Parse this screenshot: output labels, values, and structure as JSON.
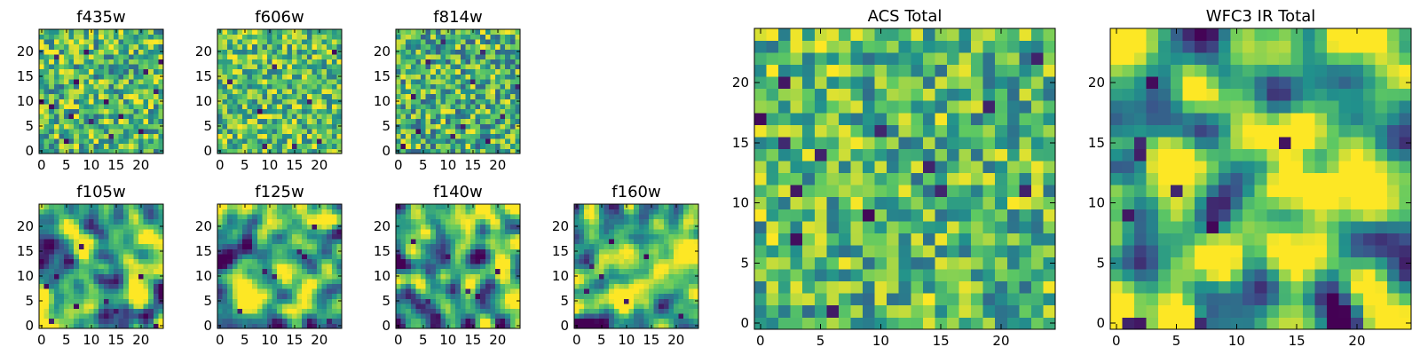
{
  "figure": {
    "colormap": "viridis",
    "colorscale": [
      "#440154",
      "#3b528b",
      "#21918c",
      "#5ec962",
      "#fde725"
    ],
    "background": "#ffffff"
  },
  "chart_data": [
    {
      "type": "heatmap",
      "title": "f435w",
      "grid_size": 25,
      "xlim": [
        0,
        24
      ],
      "ylim": [
        0,
        24
      ],
      "xticks": [
        0,
        5,
        10,
        15,
        20
      ],
      "yticks": [
        0,
        5,
        10,
        15,
        20
      ],
      "origin": "lower",
      "character": "uniform fine-grained pixel noise, mostly green-yellow with scattered dark pixels",
      "seed": 11,
      "smoothness": 0,
      "mean": 0.68,
      "contrast": 0.2,
      "dark_pixels": [
        [
          13,
          10
        ],
        [
          10,
          6
        ],
        [
          5,
          2
        ],
        [
          7,
          14
        ],
        [
          3,
          19
        ],
        [
          20,
          4
        ],
        [
          23,
          12
        ],
        [
          2,
          9
        ],
        [
          9,
          20
        ],
        [
          16,
          7
        ],
        [
          21,
          16
        ],
        [
          0,
          10
        ],
        [
          14,
          3
        ],
        [
          6,
          7
        ],
        [
          24,
          18
        ]
      ]
    },
    {
      "type": "heatmap",
      "title": "f606w",
      "grid_size": 25,
      "xlim": [
        0,
        24
      ],
      "ylim": [
        0,
        24
      ],
      "xticks": [
        0,
        5,
        10,
        15,
        20
      ],
      "yticks": [
        0,
        5,
        10,
        15,
        20
      ],
      "origin": "lower",
      "character": "uniform fine-grained pixel noise, mostly yellow-green",
      "seed": 23,
      "smoothness": 0,
      "mean": 0.7,
      "contrast": 0.19,
      "dark_pixels": [
        [
          8,
          8
        ],
        [
          20,
          2
        ],
        [
          2,
          14
        ],
        [
          15,
          1
        ],
        [
          11,
          17
        ],
        [
          18,
          10
        ],
        [
          9,
          1
        ],
        [
          23,
          20
        ]
      ]
    },
    {
      "type": "heatmap",
      "title": "f814w",
      "grid_size": 25,
      "xlim": [
        0,
        24
      ],
      "ylim": [
        0,
        24
      ],
      "xticks": [
        0,
        5,
        10,
        15,
        20
      ],
      "yticks": [
        0,
        5,
        10,
        15,
        20
      ],
      "origin": "lower",
      "character": "uniform fine-grained pixel noise, green with scattered dark pixels",
      "seed": 37,
      "smoothness": 0,
      "mean": 0.64,
      "contrast": 0.21,
      "dark_pixels": [
        [
          3,
          11
        ],
        [
          11,
          3
        ],
        [
          18,
          2
        ],
        [
          24,
          13
        ],
        [
          6,
          18
        ],
        [
          15,
          14
        ],
        [
          21,
          7
        ],
        [
          9,
          22
        ],
        [
          1,
          1
        ],
        [
          13,
          5
        ],
        [
          17,
          20
        ],
        [
          4,
          4
        ]
      ]
    },
    {
      "type": "heatmap",
      "title": "f105w",
      "grid_size": 25,
      "xlim": [
        0,
        24
      ],
      "ylim": [
        0,
        24
      ],
      "xticks": [
        0,
        5,
        10,
        15,
        20
      ],
      "yticks": [
        0,
        5,
        10,
        15,
        20
      ],
      "origin": "lower",
      "character": "smoother blotchy structure with yellow patches and dark blue-purple clumps",
      "seed": 51,
      "smoothness": 2,
      "mean": 0.6,
      "contrast": 0.28,
      "dark_pixels": [
        [
          1,
          8
        ],
        [
          3,
          10
        ],
        [
          15,
          3
        ],
        [
          13,
          5
        ],
        [
          7,
          4
        ],
        [
          2,
          1
        ],
        [
          23,
          0
        ],
        [
          8,
          16
        ],
        [
          20,
          10
        ]
      ]
    },
    {
      "type": "heatmap",
      "title": "f125w",
      "grid_size": 25,
      "xlim": [
        0,
        24
      ],
      "ylim": [
        0,
        24
      ],
      "xticks": [
        0,
        5,
        10,
        15,
        20
      ],
      "yticks": [
        0,
        5,
        10,
        15,
        20
      ],
      "origin": "lower",
      "character": "smoother blotchy structure with yellow patches and a few dark clumps",
      "seed": 67,
      "smoothness": 2,
      "mean": 0.62,
      "contrast": 0.27,
      "dark_pixels": [
        [
          9,
          11
        ],
        [
          11,
          10
        ],
        [
          16,
          15
        ],
        [
          17,
          14
        ],
        [
          4,
          3
        ],
        [
          22,
          1
        ],
        [
          19,
          20
        ]
      ]
    },
    {
      "type": "heatmap",
      "title": "f140w",
      "grid_size": 25,
      "xlim": [
        0,
        24
      ],
      "ylim": [
        0,
        24
      ],
      "xticks": [
        0,
        5,
        10,
        15,
        20
      ],
      "yticks": [
        0,
        5,
        10,
        15,
        20
      ],
      "origin": "lower",
      "character": "smoother blotchy structure, yellow band on the right and dark spots",
      "seed": 79,
      "smoothness": 2,
      "mean": 0.6,
      "contrast": 0.28,
      "dark_pixels": [
        [
          3,
          17
        ],
        [
          10,
          14
        ],
        [
          14,
          7
        ],
        [
          16,
          6
        ],
        [
          1,
          0
        ],
        [
          6,
          5
        ],
        [
          20,
          11
        ],
        [
          8,
          2
        ]
      ]
    },
    {
      "type": "heatmap",
      "title": "f160w",
      "grid_size": 25,
      "xlim": [
        0,
        24
      ],
      "ylim": [
        0,
        24
      ],
      "xticks": [
        0,
        5,
        10,
        15,
        20
      ],
      "yticks": [
        0,
        5,
        10,
        15,
        20
      ],
      "origin": "lower",
      "character": "smoother blotchy structure, yellow-green centre with dark blue patches on the left",
      "seed": 97,
      "smoothness": 2,
      "mean": 0.66,
      "contrast": 0.27,
      "dark_pixels": [
        [
          3,
          12
        ],
        [
          5,
          10
        ],
        [
          2,
          7
        ],
        [
          14,
          14
        ],
        [
          10,
          5
        ],
        [
          21,
          2
        ],
        [
          4,
          1
        ],
        [
          7,
          17
        ]
      ]
    },
    {
      "type": "heatmap",
      "title": "ACS Total",
      "grid_size": 25,
      "xlim": [
        0,
        24
      ],
      "ylim": [
        0,
        24
      ],
      "xticks": [
        0,
        5,
        10,
        15,
        20
      ],
      "yticks": [
        0,
        5,
        10,
        15,
        20
      ],
      "origin": "lower",
      "character": "coarse pixel noise, mostly green-yellow with a handful of dark purple pixels",
      "seed": 131,
      "smoothness": 0,
      "mean": 0.68,
      "contrast": 0.19,
      "dark_pixels": [
        [
          2,
          20
        ],
        [
          0,
          17
        ],
        [
          3,
          7
        ],
        [
          9,
          9
        ],
        [
          10,
          16
        ],
        [
          15,
          11
        ],
        [
          22,
          11
        ],
        [
          6,
          1
        ],
        [
          5,
          14
        ],
        [
          14,
          13
        ],
        [
          3,
          11
        ],
        [
          19,
          18
        ],
        [
          2,
          15
        ],
        [
          23,
          22
        ]
      ]
    },
    {
      "type": "heatmap",
      "title": "WFC3 IR Total",
      "grid_size": 25,
      "xlim": [
        0,
        24
      ],
      "ylim": [
        0,
        24
      ],
      "xticks": [
        0,
        5,
        10,
        15,
        20
      ],
      "yticks": [
        0,
        5,
        10,
        15,
        20
      ],
      "origin": "lower",
      "character": "smooth coarse structure, bright yellow ridge through the centre-right, teal-blue region on the left",
      "seed": 173,
      "smoothness": 2,
      "mean": 0.7,
      "contrast": 0.3,
      "dark_pixels": [
        [
          1,
          0
        ],
        [
          2,
          0
        ],
        [
          7,
          0
        ],
        [
          2,
          14
        ],
        [
          2,
          15
        ],
        [
          5,
          11
        ],
        [
          14,
          15
        ],
        [
          8,
          8
        ],
        [
          3,
          20
        ],
        [
          1,
          9
        ]
      ]
    }
  ]
}
